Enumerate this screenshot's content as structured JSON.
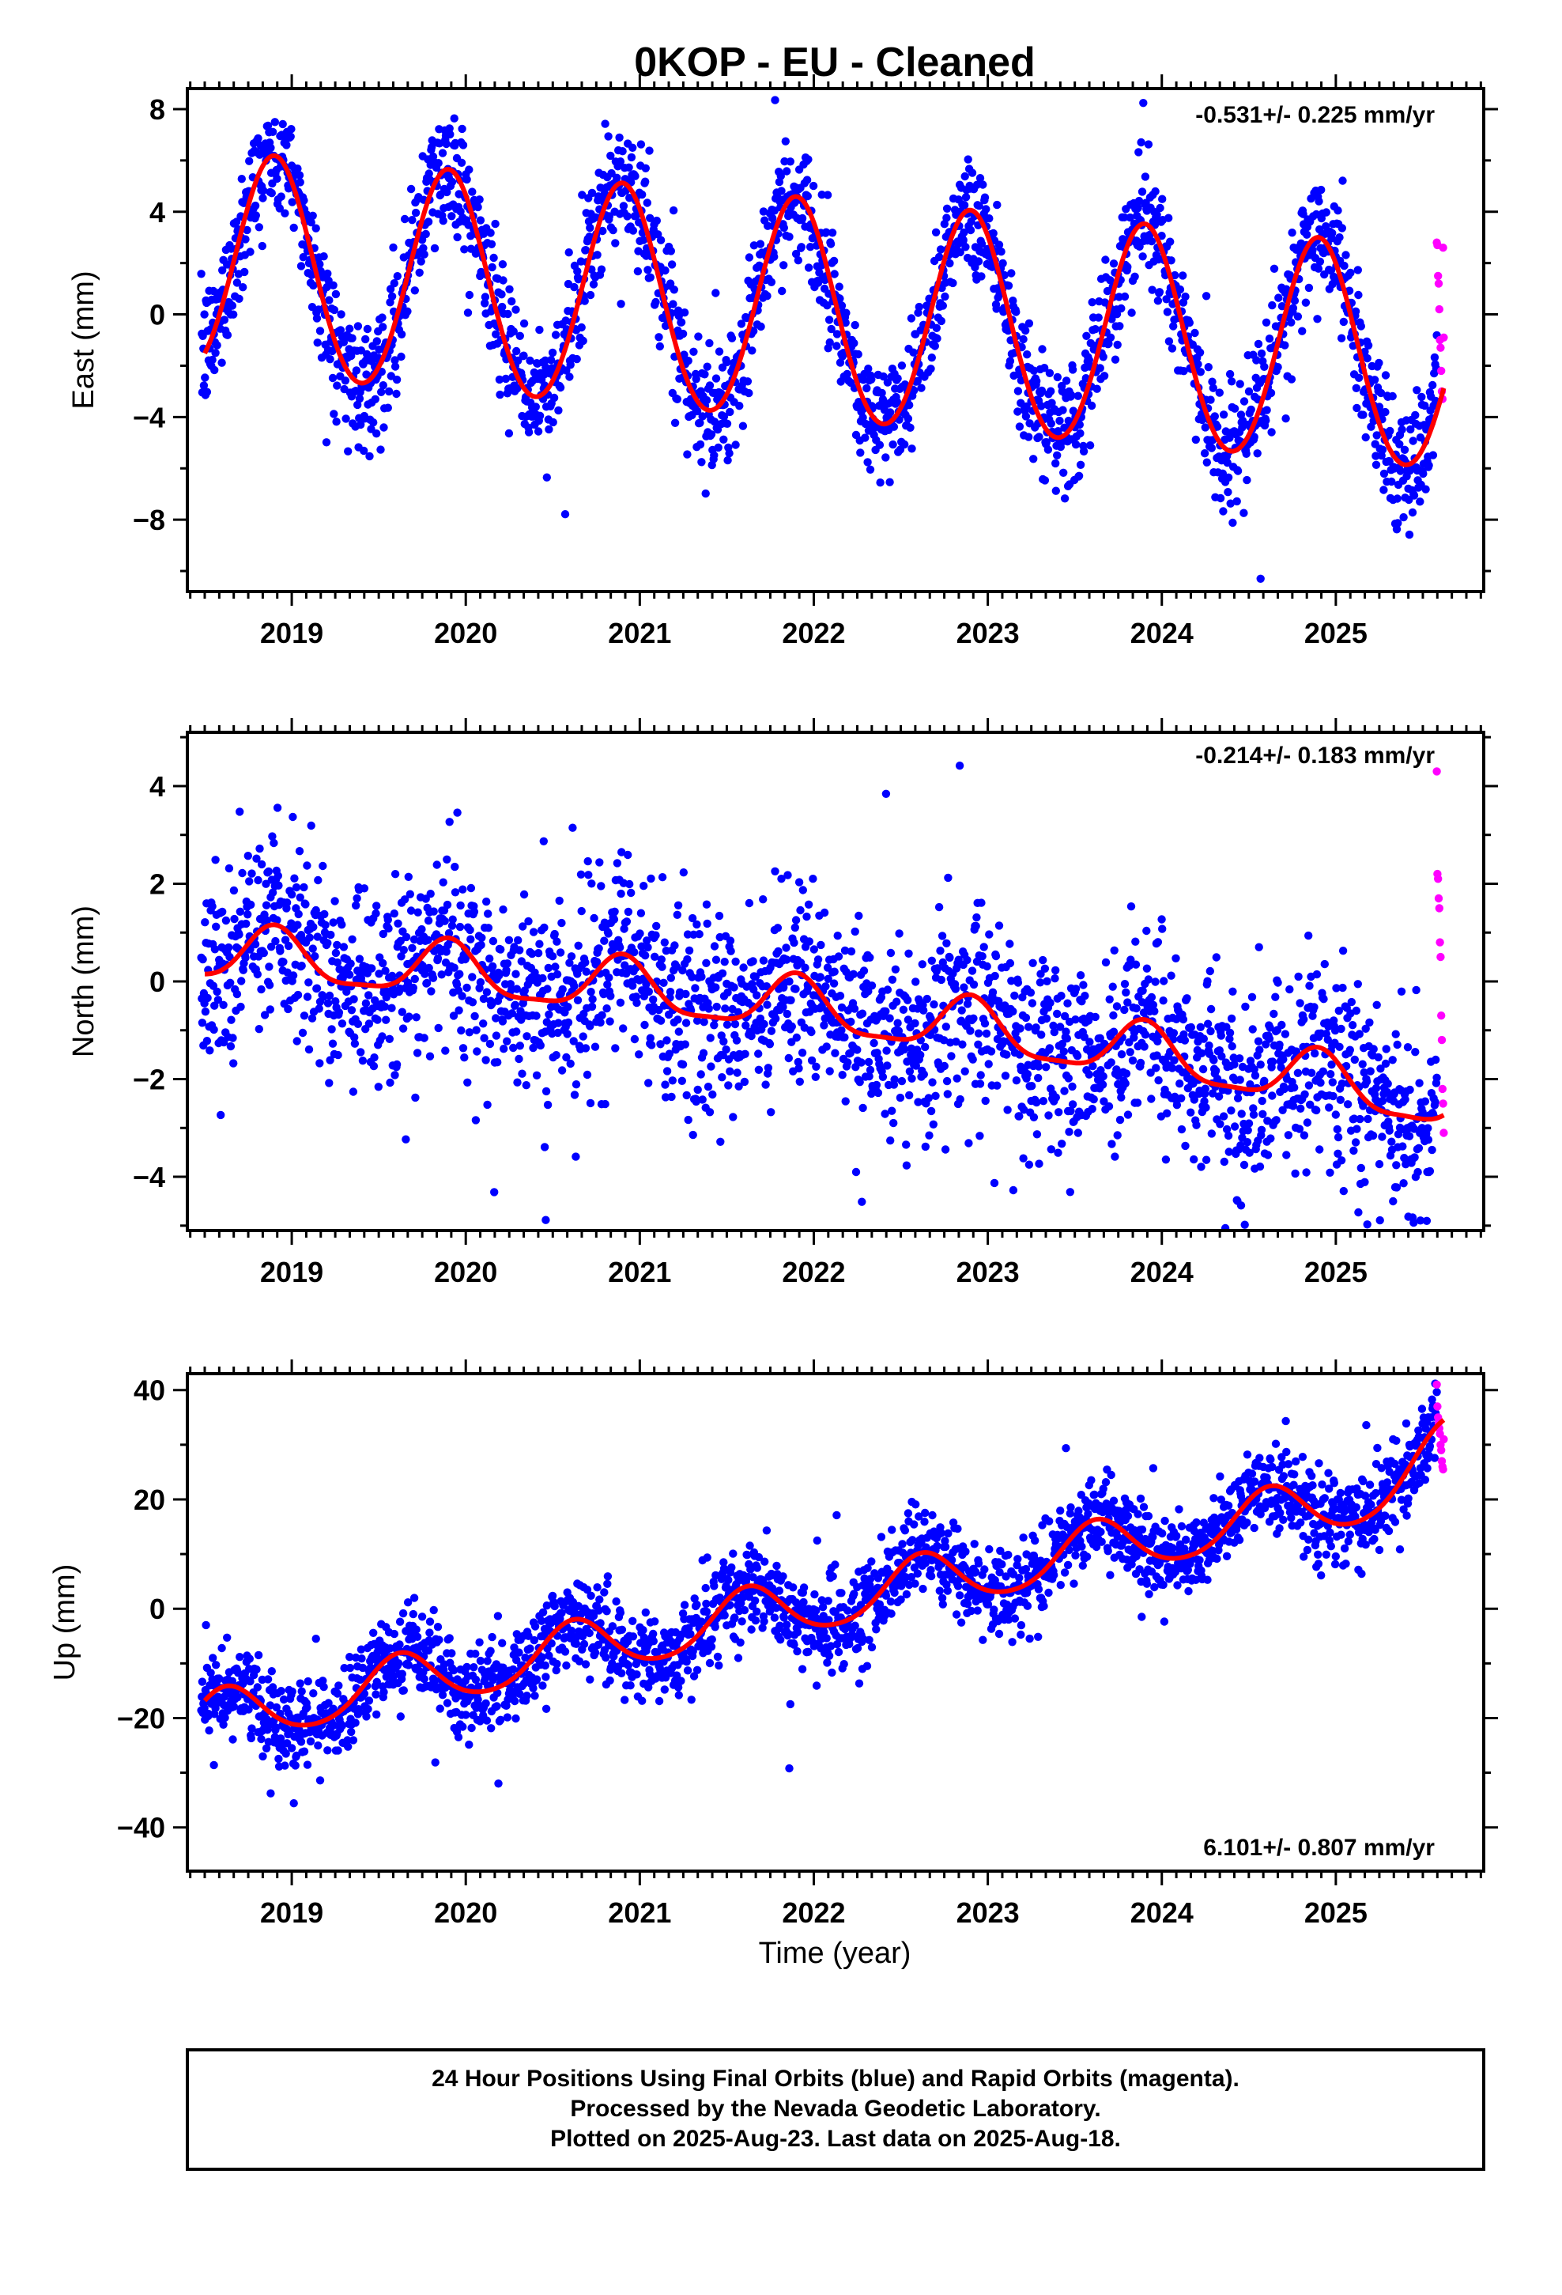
{
  "figure": {
    "title": "0KOP  - EU - Cleaned",
    "xlabel": "Time (year)",
    "footer": [
      "24 Hour Positions Using Final Orbits (blue) and Rapid Orbits (magenta).",
      "Processed by the Nevada Geodetic Laboratory.",
      "Plotted on 2025-Aug-23. Last data on 2025-Aug-18."
    ]
  },
  "colors": {
    "final": "#0000ff",
    "rapid": "#ff00ff",
    "model": "#ff0000",
    "axis": "#000000"
  },
  "chart_data": [
    {
      "type": "scatter",
      "ylabel": "East (mm)",
      "rate": "-0.531+/- 0.225 mm/yr",
      "xlim": [
        2018.4,
        2025.85
      ],
      "ylim": [
        -10.8,
        8.8
      ],
      "xticks": [
        2019,
        2020,
        2021,
        2022,
        2023,
        2024,
        2025
      ],
      "yticks": [
        -8,
        -4,
        0,
        4,
        8
      ],
      "grid": false,
      "model": {
        "x0": 2018.5,
        "x1": 2025.62,
        "offset": 1.9,
        "trend": -0.531,
        "annual_amp": 4.3,
        "annual_phase_year": 2018.9,
        "semiannual_amp": 0.2
      },
      "series": [
        {
          "role": "final",
          "x_range": [
            2018.48,
            2025.58
          ],
          "scatter": 1.2,
          "n": 2350
        },
        {
          "role": "rapid",
          "x_range": [
            2025.58,
            2025.62
          ],
          "values": [
            2.8,
            2.7,
            1.5,
            1.2,
            0.2,
            -1.0,
            -1.3,
            -2.2,
            -3.0,
            -3.3,
            2.6,
            -0.9
          ]
        }
      ]
    },
    {
      "type": "scatter",
      "ylabel": "North (mm)",
      "rate": "-0.214+/- 0.183 mm/yr",
      "xlim": [
        2018.4,
        2025.85
      ],
      "ylim": [
        -5.1,
        5.1
      ],
      "xticks": [
        2019,
        2020,
        2021,
        2022,
        2023,
        2024,
        2025
      ],
      "yticks": [
        -4,
        -2,
        0,
        2,
        4
      ],
      "grid": false,
      "model": {
        "x0": 2018.5,
        "x1": 2025.62,
        "offset": 0.55,
        "trend": -0.214,
        "annual_amp": 0.55,
        "annual_phase_year": 2018.9,
        "semiannual_amp": 0.15,
        "drift_extra": -0.03
      },
      "series": [
        {
          "role": "final",
          "x_range": [
            2018.48,
            2025.58
          ],
          "scatter": 1.0,
          "n": 2350
        },
        {
          "role": "rapid",
          "x_range": [
            2025.58,
            2025.62
          ],
          "values": [
            4.3,
            2.2,
            2.1,
            1.7,
            1.5,
            0.8,
            0.5,
            -0.7,
            -1.2,
            -2.2,
            -2.5,
            -3.1
          ]
        }
      ]
    },
    {
      "type": "scatter",
      "ylabel": "Up (mm)",
      "rate": "6.101+/- 0.807 mm/yr",
      "xlim": [
        2018.4,
        2025.85
      ],
      "ylim": [
        -48,
        43
      ],
      "xticks": [
        2019,
        2020,
        2021,
        2022,
        2023,
        2024,
        2025
      ],
      "yticks": [
        -40,
        -20,
        0,
        20,
        40
      ],
      "grid": false,
      "model": {
        "x0": 2018.5,
        "x1": 2025.62,
        "offset": -20.5,
        "trend": 6.101,
        "annual_amp": 5.0,
        "annual_phase_year": 2018.62,
        "semiannual_amp": 0.6,
        "end_rise": 6.0
      },
      "series": [
        {
          "role": "final",
          "x_range": [
            2018.48,
            2025.58
          ],
          "scatter": 4.0,
          "n": 2350
        },
        {
          "role": "rapid",
          "x_range": [
            2025.58,
            2025.62
          ],
          "values": [
            41.0,
            37.0,
            35.0,
            34.0,
            33.0,
            32.0,
            30.0,
            29.0,
            27.0,
            26.0,
            25.5,
            31.0
          ]
        }
      ]
    }
  ]
}
